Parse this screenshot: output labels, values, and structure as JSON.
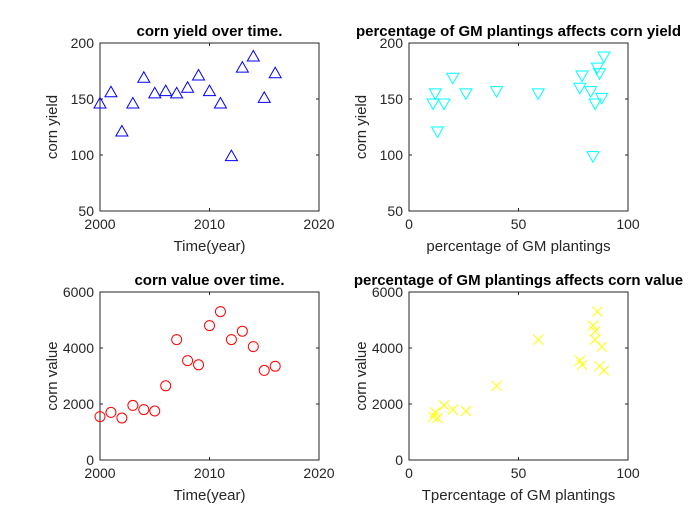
{
  "chart_data": [
    {
      "type": "scatter",
      "title": "corn yield over time.",
      "xlabel": "Time(year)",
      "ylabel": "corn yield",
      "xlim": [
        2000,
        2020
      ],
      "ylim": [
        50,
        200
      ],
      "xticks": [
        "2000",
        "2010",
        "2020"
      ],
      "yticks": [
        "50",
        "100",
        "150",
        "200"
      ],
      "marker": "triangle-up",
      "color": "#0000ff",
      "x": [
        2000,
        2001,
        2002,
        2003,
        2004,
        2005,
        2006,
        2007,
        2008,
        2009,
        2010,
        2011,
        2012,
        2013,
        2014,
        2015,
        2016
      ],
      "y": [
        146,
        156,
        121,
        146,
        169,
        155,
        157,
        155,
        160,
        171,
        157,
        146,
        99,
        178,
        188,
        151,
        173
      ]
    },
    {
      "type": "scatter",
      "title": "percentage of GM plantings affects corn yield",
      "xlabel": "percentage of GM plantings",
      "ylabel": "corn yield",
      "xlim": [
        0,
        100
      ],
      "ylim": [
        50,
        200
      ],
      "xticks": [
        "0",
        "50",
        "100"
      ],
      "yticks": [
        "50",
        "100",
        "150",
        "200"
      ],
      "marker": "triangle-down",
      "color": "#00ffff",
      "x": [
        11,
        12,
        13,
        16,
        20,
        26,
        40,
        59,
        78,
        79,
        83,
        84,
        85,
        86,
        87,
        88,
        89
      ],
      "y": [
        146,
        155,
        121,
        146,
        169,
        155,
        157,
        155,
        160,
        171,
        157,
        99,
        146,
        178,
        173,
        151,
        188
      ]
    },
    {
      "type": "scatter",
      "title": "corn value over time.",
      "xlabel": "Time(year)",
      "ylabel": "corn value",
      "xlim": [
        2000,
        2020
      ],
      "ylim": [
        0,
        6000
      ],
      "xticks": [
        "2000",
        "2010",
        "2020"
      ],
      "yticks": [
        "0",
        "2000",
        "4000",
        "6000"
      ],
      "marker": "circle",
      "color": "#ff0000",
      "x": [
        2000,
        2001,
        2002,
        2003,
        2004,
        2005,
        2006,
        2007,
        2008,
        2009,
        2010,
        2011,
        2012,
        2013,
        2014,
        2015,
        2016
      ],
      "y": [
        1550,
        1700,
        1500,
        1950,
        1800,
        1750,
        2650,
        4300,
        3550,
        3400,
        4800,
        5300,
        4300,
        4600,
        4050,
        3200,
        3350
      ]
    },
    {
      "type": "scatter",
      "title": "percentage of GM plantings affects corn value",
      "xlabel": "Tpercentage of GM plantings",
      "ylabel": "corn value",
      "xlim": [
        0,
        100
      ],
      "ylim": [
        0,
        6000
      ],
      "xticks": [
        "0",
        "50",
        "100"
      ],
      "yticks": [
        "0",
        "2000",
        "4000",
        "6000"
      ],
      "marker": "x",
      "color": "#ffff00",
      "x": [
        11,
        12,
        13,
        16,
        20,
        26,
        40,
        59,
        78,
        79,
        84,
        85,
        85,
        86,
        87,
        88,
        89
      ],
      "y": [
        1550,
        1700,
        1500,
        1950,
        1800,
        1750,
        2650,
        4300,
        3550,
        3400,
        4800,
        4600,
        4300,
        5300,
        3350,
        4050,
        3200
      ]
    }
  ]
}
